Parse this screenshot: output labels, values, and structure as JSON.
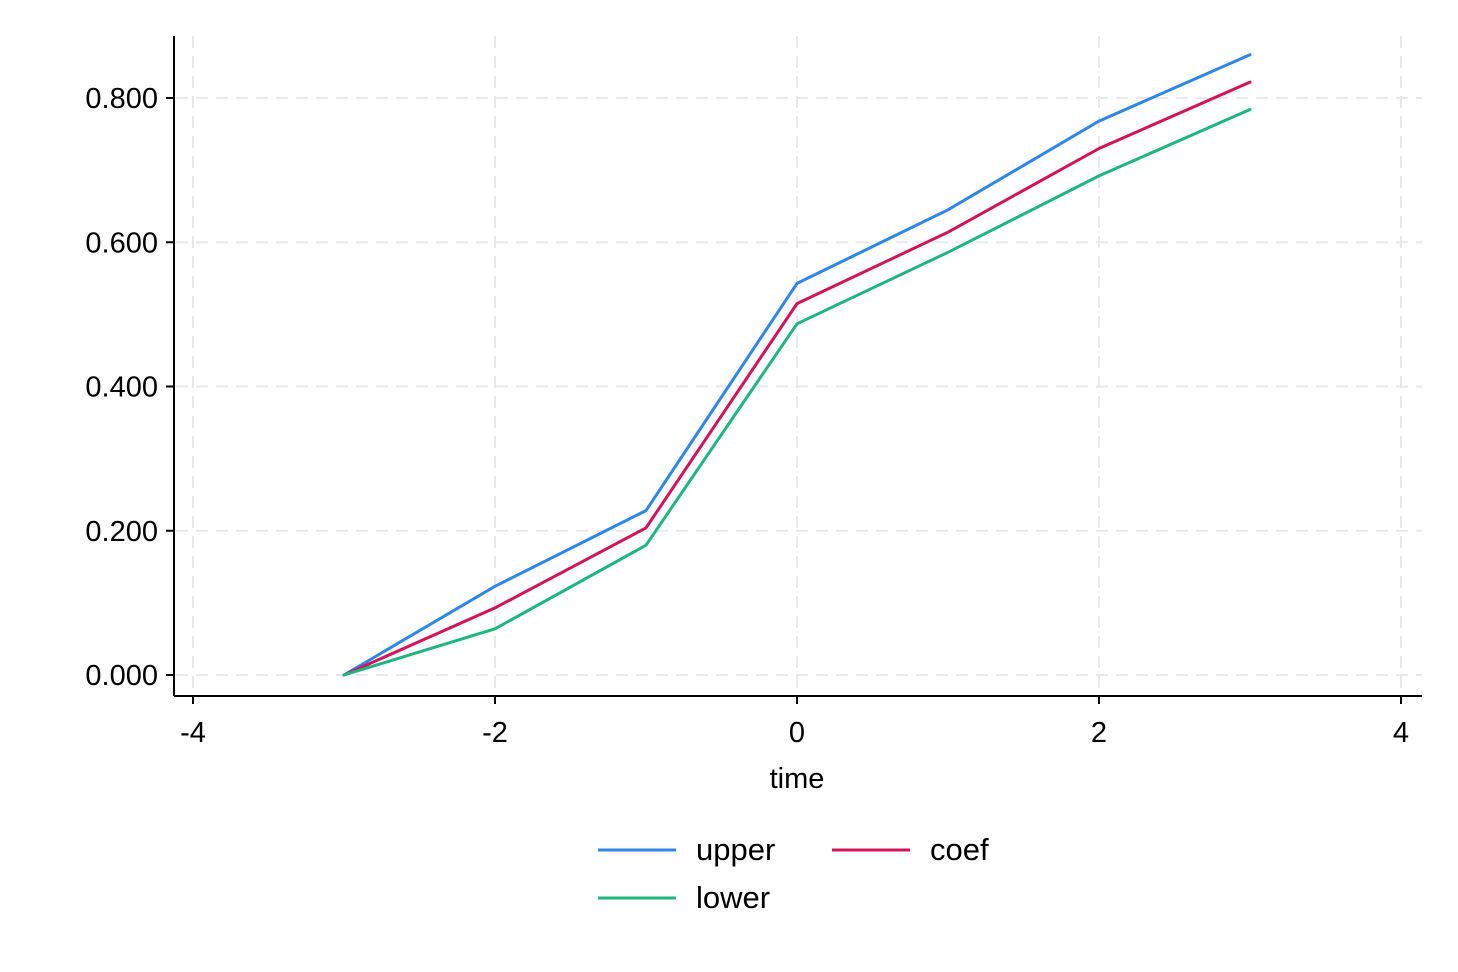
{
  "chart_data": {
    "type": "line",
    "xlabel": "time",
    "ylabel": "",
    "xlim": [
      -4,
      4
    ],
    "ylim": [
      0,
      0.8
    ],
    "x_ticks": [
      -4,
      -2,
      0,
      2,
      4
    ],
    "x_tick_labels": [
      "-4",
      "-2",
      "0",
      "2",
      "4"
    ],
    "y_ticks": [
      0,
      0.2,
      0.4,
      0.6,
      0.8
    ],
    "y_tick_labels": [
      "0.000",
      "0.200",
      "0.400",
      "0.600",
      "0.800"
    ],
    "grid": true,
    "legend_position": "bottom",
    "x": [
      -3,
      -2,
      -1,
      0,
      1,
      2,
      3
    ],
    "series": [
      {
        "name": "upper",
        "color": "#2e86e8",
        "values": [
          0,
          0.123,
          0.228,
          0.543,
          0.645,
          0.768,
          0.86
        ]
      },
      {
        "name": "coef",
        "color": "#d1145a",
        "values": [
          0,
          0.093,
          0.204,
          0.515,
          0.614,
          0.73,
          0.822
        ]
      },
      {
        "name": "lower",
        "color": "#1fb57e",
        "values": [
          0,
          0.064,
          0.18,
          0.487,
          0.586,
          0.692,
          0.784
        ]
      }
    ]
  }
}
